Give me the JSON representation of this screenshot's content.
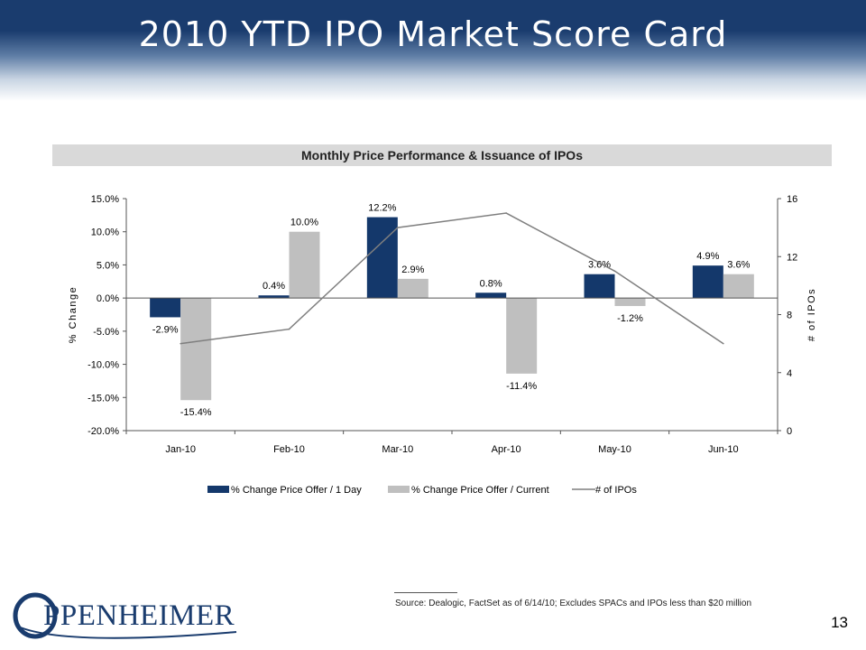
{
  "slide": {
    "title": "2010 YTD IPO Market Score Card",
    "page_number": "13",
    "source": "Source: Dealogic, FactSet as of 6/14/10; Excludes SPACs and IPOs less than $20 million",
    "logo_text": "PPENHEIMER"
  },
  "colors": {
    "header_navy": "#1a3c6e",
    "series_1day": "#14386b",
    "series_current": "#bfbfbf",
    "series_ipos": "#7f7f7f",
    "banner_gray": "#d9d9d9"
  },
  "chart_data": {
    "type": "bar",
    "title": "Monthly Price Performance & Issuance of IPOs",
    "categories": [
      "Jan-10",
      "Feb-10",
      "Mar-10",
      "Apr-10",
      "May-10",
      "Jun-10"
    ],
    "ylabel": "% Change",
    "y2label": "# of IPOs",
    "ylim": [
      -20,
      15
    ],
    "y2lim": [
      0,
      16
    ],
    "y_ticks": [
      "15.0%",
      "10.0%",
      "5.0%",
      "0.0%",
      "-5.0%",
      "-10.0%",
      "-15.0%",
      "-20.0%"
    ],
    "y2_ticks": [
      "16",
      "12",
      "8",
      "4",
      "0"
    ],
    "legend_position": "bottom",
    "grid": false,
    "series": [
      {
        "name": "% Change Price Offer / 1 Day",
        "type": "bar",
        "axis": "left",
        "values": [
          -2.9,
          0.4,
          12.2,
          0.8,
          3.6,
          4.9
        ],
        "labels": [
          "-2.9%",
          "0.4%",
          "12.2%",
          "0.8%",
          "3.6%",
          "4.9%"
        ]
      },
      {
        "name": "% Change Price Offer / Current",
        "type": "bar",
        "axis": "right_of_pair",
        "values": [
          -15.4,
          10.0,
          2.9,
          -11.4,
          -1.2,
          3.6
        ],
        "labels": [
          "-15.4%",
          "10.0%",
          "2.9%",
          "-11.4%",
          "-1.2%",
          "3.6%"
        ]
      },
      {
        "name": "# of IPOs",
        "type": "line",
        "axis": "secondary",
        "values": [
          6,
          7,
          14,
          15,
          11,
          6
        ]
      }
    ]
  }
}
